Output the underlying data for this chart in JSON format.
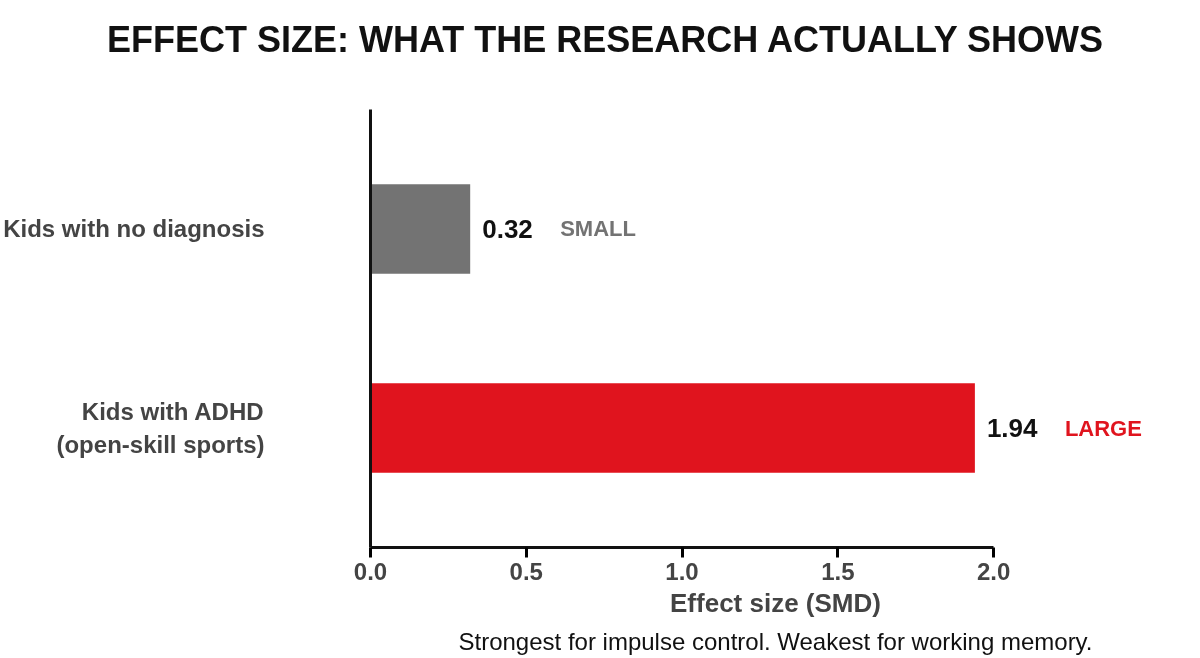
{
  "chart_data": {
    "type": "bar",
    "orientation": "horizontal",
    "title": "EFFECT SIZE: WHAT THE RESEARCH ACTUALLY SHOWS",
    "categories": [
      "Kids with no diagnosis",
      "Kids with ADHD\n(open-skill sports)"
    ],
    "values": [
      0.32,
      1.94
    ],
    "colors": [
      "#737373",
      "#e0141e"
    ],
    "xlabel": "Effect size (SMD)",
    "xlim": [
      0,
      2.0
    ],
    "xticks": [
      {
        "value": 0,
        "label": "0.0"
      },
      {
        "value": 0.5,
        "label": "0.5"
      },
      {
        "value": 1.0,
        "label": "1.0"
      },
      {
        "value": 1.5,
        "label": "1.5"
      },
      {
        "value": 2.0,
        "label": "2.0"
      }
    ],
    "data_labels": true,
    "grid": false,
    "annotations": [
      "SMALL",
      "LARGE",
      "Strongest for impulse control. Weakest for working memory."
    ]
  }
}
